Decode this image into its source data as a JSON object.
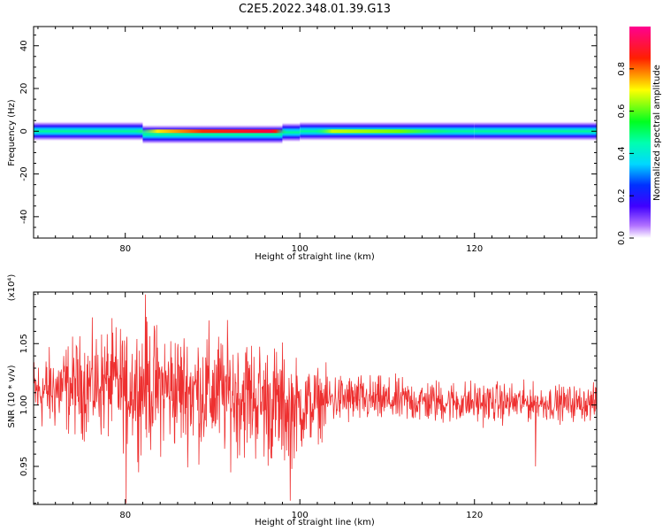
{
  "title": "C2E5.2022.348.01.39.G13",
  "chart_data": [
    {
      "type": "heatmap",
      "title": "C2E5.2022.348.01.39.G13",
      "xlabel": "Height of straight line (km)",
      "ylabel": "Frequency (Hz)",
      "xlim": [
        69.5,
        134
      ],
      "ylim": [
        -50,
        49
      ],
      "xticks": [
        "80",
        "100",
        "120"
      ],
      "yticks": [
        "40",
        "20",
        "0",
        "-20",
        "-40"
      ],
      "grid": false,
      "colorbar": {
        "label": "Normalized spectral amplitude",
        "range": [
          0,
          1
        ],
        "ticks": [
          "0.0",
          "0.2",
          "0.4",
          "0.6",
          "0.8"
        ],
        "colormap": [
          "#ffffff",
          "#6a00ff",
          "#0000ff",
          "#00e5ff",
          "#00ff00",
          "#ffff00",
          "#ff0000",
          "#ff0080"
        ]
      },
      "ridge": {
        "description_segments": [
          {
            "x": [
              69.5,
              82
            ],
            "center_hz": 0.0,
            "peak": 0.35
          },
          {
            "x": [
              82,
              98
            ],
            "center_hz": -1.5,
            "peak": 0.95
          },
          {
            "x": [
              98,
              100
            ],
            "center_hz": -0.5,
            "peak": 0.4
          },
          {
            "x": [
              100,
              120
            ],
            "center_hz": 0.0,
            "peak": 0.65
          },
          {
            "x": [
              120,
              134
            ],
            "center_hz": 0.0,
            "peak": 0.3
          }
        ],
        "half_width_hz": 3
      }
    },
    {
      "type": "line",
      "xlabel": "Height of straight line (km)",
      "ylabel": "SNR (10 * v/v)",
      "y_multiplier": "(x10⁴)",
      "xlim": [
        69.5,
        134
      ],
      "ylim": [
        0.919,
        1.092
      ],
      "xticks": [
        "80",
        "100",
        "120"
      ],
      "yticks": [
        "1.05",
        "1.00",
        "0.95"
      ],
      "grid": false,
      "color": "#ee3030",
      "series": [
        {
          "x_start": 69.5,
          "x_end": 134,
          "envelope": [
            {
              "x": 70,
              "lo": 0.975,
              "hi": 1.045
            },
            {
              "x": 74,
              "lo": 0.97,
              "hi": 1.06
            },
            {
              "x": 78,
              "lo": 0.965,
              "hi": 1.07
            },
            {
              "x": 82,
              "lo": 0.955,
              "hi": 1.075
            },
            {
              "x": 86,
              "lo": 0.955,
              "hi": 1.07
            },
            {
              "x": 90,
              "lo": 0.95,
              "hi": 1.07
            },
            {
              "x": 94,
              "lo": 0.95,
              "hi": 1.065
            },
            {
              "x": 98,
              "lo": 0.94,
              "hi": 1.055
            },
            {
              "x": 100,
              "lo": 0.955,
              "hi": 1.04
            },
            {
              "x": 104,
              "lo": 0.98,
              "hi": 1.03
            },
            {
              "x": 110,
              "lo": 0.982,
              "hi": 1.025
            },
            {
              "x": 120,
              "lo": 0.982,
              "hi": 1.022
            },
            {
              "x": 130,
              "lo": 0.985,
              "hi": 1.018
            },
            {
              "x": 134,
              "lo": 0.985,
              "hi": 1.018
            }
          ],
          "spikes": [
            {
              "x": 80.1,
              "y": 0.92
            },
            {
              "x": 82.3,
              "y": 1.09
            },
            {
              "x": 98.9,
              "y": 0.922
            },
            {
              "x": 127.0,
              "y": 0.95
            }
          ]
        }
      ]
    }
  ]
}
